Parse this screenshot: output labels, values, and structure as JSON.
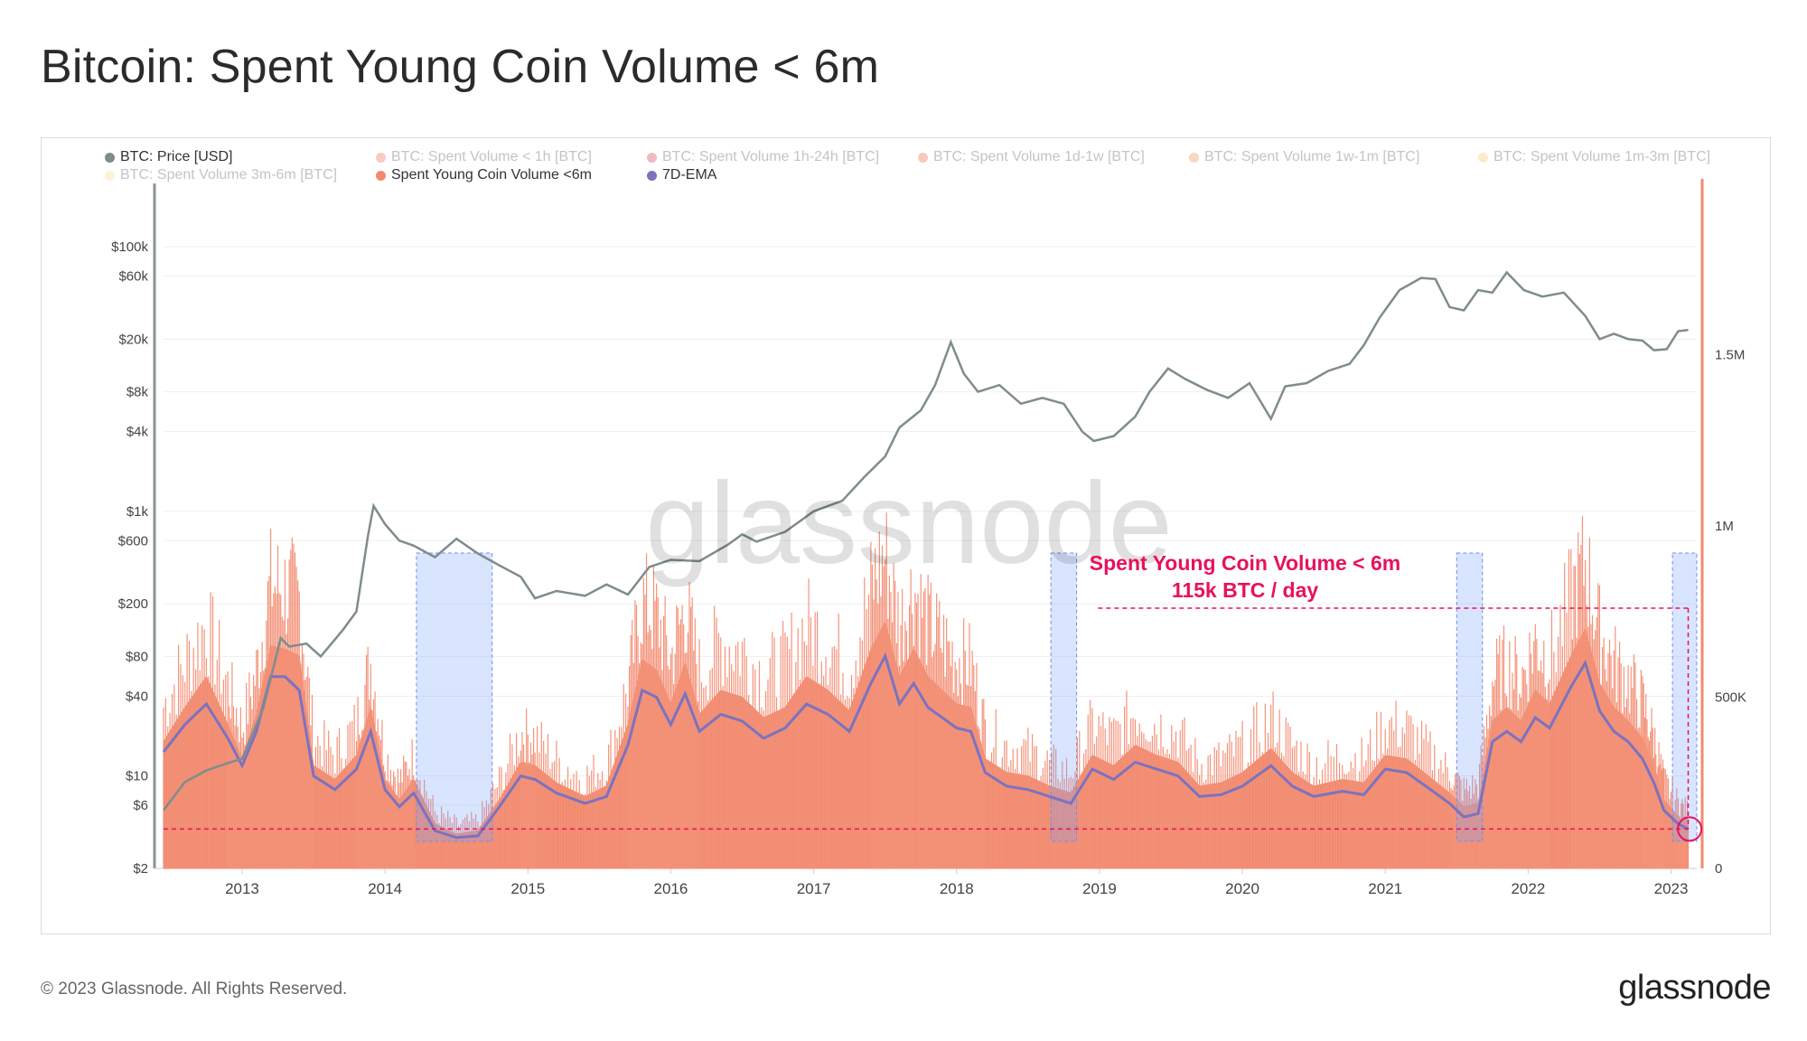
{
  "title": "Bitcoin: Spent Young Coin Volume < 6m",
  "footer": "© 2023 Glassnode. All Rights Reserved.",
  "brand": "glassnode",
  "watermark": "glassnode",
  "legend": [
    {
      "label": "BTC: Price [USD]",
      "color": "#7f8c8d",
      "active": true
    },
    {
      "label": "BTC: Spent Volume < 1h [BTC]",
      "color": "#f08f7a",
      "active": false
    },
    {
      "label": "BTC: Spent Volume 1h-24h [BTC]",
      "color": "#e0647b",
      "active": false
    },
    {
      "label": "BTC: Spent Volume 1d-1w [BTC]",
      "color": "#f4876a",
      "active": false
    },
    {
      "label": "BTC: Spent Volume 1w-1m [BTC]",
      "color": "#f7a77a",
      "active": false
    },
    {
      "label": "BTC: Spent Volume 1m-3m [BTC]",
      "color": "#fbd08a",
      "active": false
    },
    {
      "label": "BTC: Spent Volume 3m-6m [BTC]",
      "color": "#fbe3a5",
      "active": false
    },
    {
      "label": "Spent Young Coin Volume <6m",
      "color": "#f08a6e",
      "active": true
    },
    {
      "label": "7D-EMA",
      "color": "#7b72c0",
      "active": true
    }
  ],
  "annotation": {
    "line1": "Spent Young Coin Volume < 6m",
    "line2": "115k BTC / day",
    "color": "#e8115e"
  },
  "chart_data": {
    "type": "area",
    "x_ticks": [
      "2013",
      "2014",
      "2015",
      "2016",
      "2017",
      "2018",
      "2019",
      "2020",
      "2021",
      "2022",
      "2023"
    ],
    "y_left_ticks": [
      "$100k",
      "$60k",
      "$20k",
      "$8k",
      "$4k",
      "$1k",
      "$600",
      "$200",
      "$80",
      "$40",
      "$10",
      "$6",
      "$2"
    ],
    "y_left_values": [
      100000,
      60000,
      20000,
      8000,
      4000,
      1000,
      600,
      200,
      80,
      40,
      10,
      6,
      2
    ],
    "y_left_scale": "log",
    "y_right_ticks": [
      "1.5M",
      "1M",
      "500K",
      "0"
    ],
    "y_right_values": [
      1500000,
      1000000,
      500000,
      0
    ],
    "y_right_ylim": [
      0,
      2000000
    ],
    "x_range": [
      2012.45,
      2023.18
    ],
    "series": [
      {
        "name": "BTC: Price [USD]",
        "axis": "left",
        "points": [
          [
            2012.45,
            5.5
          ],
          [
            2012.6,
            9
          ],
          [
            2012.75,
            11
          ],
          [
            2012.9,
            12.5
          ],
          [
            2013.0,
            13.5
          ],
          [
            2013.15,
            33
          ],
          [
            2013.27,
            110
          ],
          [
            2013.33,
            95
          ],
          [
            2013.45,
            100
          ],
          [
            2013.55,
            80
          ],
          [
            2013.7,
            125
          ],
          [
            2013.8,
            175
          ],
          [
            2013.88,
            650
          ],
          [
            2013.92,
            1100
          ],
          [
            2014.0,
            800
          ],
          [
            2014.1,
            600
          ],
          [
            2014.2,
            550
          ],
          [
            2014.35,
            450
          ],
          [
            2014.5,
            620
          ],
          [
            2014.65,
            480
          ],
          [
            2014.8,
            390
          ],
          [
            2014.95,
            320
          ],
          [
            2015.05,
            220
          ],
          [
            2015.2,
            250
          ],
          [
            2015.4,
            230
          ],
          [
            2015.55,
            280
          ],
          [
            2015.7,
            235
          ],
          [
            2015.85,
            380
          ],
          [
            2016.0,
            430
          ],
          [
            2016.2,
            420
          ],
          [
            2016.4,
            560
          ],
          [
            2016.5,
            670
          ],
          [
            2016.6,
            590
          ],
          [
            2016.8,
            700
          ],
          [
            2017.0,
            1000
          ],
          [
            2017.2,
            1200
          ],
          [
            2017.35,
            1800
          ],
          [
            2017.5,
            2600
          ],
          [
            2017.6,
            4300
          ],
          [
            2017.75,
            5800
          ],
          [
            2017.85,
            9000
          ],
          [
            2017.96,
            19000
          ],
          [
            2018.05,
            11000
          ],
          [
            2018.15,
            8000
          ],
          [
            2018.3,
            9000
          ],
          [
            2018.45,
            6500
          ],
          [
            2018.6,
            7200
          ],
          [
            2018.75,
            6500
          ],
          [
            2018.88,
            4000
          ],
          [
            2018.96,
            3400
          ],
          [
            2019.1,
            3700
          ],
          [
            2019.25,
            5200
          ],
          [
            2019.35,
            8000
          ],
          [
            2019.48,
            12000
          ],
          [
            2019.6,
            10000
          ],
          [
            2019.75,
            8300
          ],
          [
            2019.9,
            7200
          ],
          [
            2020.05,
            9300
          ],
          [
            2020.2,
            5000
          ],
          [
            2020.3,
            8800
          ],
          [
            2020.45,
            9300
          ],
          [
            2020.6,
            11500
          ],
          [
            2020.75,
            13000
          ],
          [
            2020.85,
            18000
          ],
          [
            2020.96,
            29000
          ],
          [
            2021.1,
            47000
          ],
          [
            2021.25,
            58000
          ],
          [
            2021.35,
            57000
          ],
          [
            2021.45,
            35000
          ],
          [
            2021.55,
            33000
          ],
          [
            2021.65,
            47000
          ],
          [
            2021.75,
            45000
          ],
          [
            2021.85,
            64000
          ],
          [
            2021.97,
            47000
          ],
          [
            2022.1,
            42000
          ],
          [
            2022.25,
            45000
          ],
          [
            2022.4,
            30000
          ],
          [
            2022.5,
            20000
          ],
          [
            2022.6,
            22000
          ],
          [
            2022.7,
            20000
          ],
          [
            2022.8,
            19500
          ],
          [
            2022.88,
            16500
          ],
          [
            2022.97,
            16800
          ],
          [
            2023.05,
            23000
          ],
          [
            2023.12,
            23500
          ]
        ]
      },
      {
        "name": "Spent Young Coin Volume <6m",
        "axis": "right",
        "points": [
          [
            2012.45,
            370000
          ],
          [
            2012.6,
            470000
          ],
          [
            2012.75,
            560000
          ],
          [
            2012.9,
            420000
          ],
          [
            2013.0,
            320000
          ],
          [
            2013.1,
            450000
          ],
          [
            2013.2,
            650000
          ],
          [
            2013.3,
            640000
          ],
          [
            2013.4,
            620000
          ],
          [
            2013.5,
            300000
          ],
          [
            2013.65,
            260000
          ],
          [
            2013.8,
            330000
          ],
          [
            2013.9,
            470000
          ],
          [
            2014.0,
            260000
          ],
          [
            2014.1,
            200000
          ],
          [
            2014.2,
            260000
          ],
          [
            2014.35,
            130000
          ],
          [
            2014.5,
            100000
          ],
          [
            2014.65,
            110000
          ],
          [
            2014.8,
            200000
          ],
          [
            2014.95,
            310000
          ],
          [
            2015.05,
            300000
          ],
          [
            2015.2,
            250000
          ],
          [
            2015.4,
            210000
          ],
          [
            2015.55,
            240000
          ],
          [
            2015.7,
            420000
          ],
          [
            2015.8,
            610000
          ],
          [
            2015.9,
            580000
          ],
          [
            2016.0,
            480000
          ],
          [
            2016.1,
            600000
          ],
          [
            2016.2,
            450000
          ],
          [
            2016.35,
            520000
          ],
          [
            2016.5,
            500000
          ],
          [
            2016.65,
            440000
          ],
          [
            2016.8,
            470000
          ],
          [
            2016.95,
            560000
          ],
          [
            2017.1,
            520000
          ],
          [
            2017.25,
            460000
          ],
          [
            2017.4,
            640000
          ],
          [
            2017.5,
            720000
          ],
          [
            2017.6,
            560000
          ],
          [
            2017.7,
            640000
          ],
          [
            2017.8,
            560000
          ],
          [
            2017.9,
            520000
          ],
          [
            2018.0,
            480000
          ],
          [
            2018.1,
            470000
          ],
          [
            2018.2,
            320000
          ],
          [
            2018.35,
            280000
          ],
          [
            2018.5,
            270000
          ],
          [
            2018.65,
            240000
          ],
          [
            2018.8,
            220000
          ],
          [
            2018.95,
            330000
          ],
          [
            2019.1,
            300000
          ],
          [
            2019.25,
            360000
          ],
          [
            2019.4,
            330000
          ],
          [
            2019.55,
            310000
          ],
          [
            2019.7,
            240000
          ],
          [
            2019.85,
            250000
          ],
          [
            2020.0,
            280000
          ],
          [
            2020.2,
            350000
          ],
          [
            2020.35,
            280000
          ],
          [
            2020.5,
            240000
          ],
          [
            2020.7,
            260000
          ],
          [
            2020.85,
            250000
          ],
          [
            2021.0,
            330000
          ],
          [
            2021.15,
            320000
          ],
          [
            2021.3,
            270000
          ],
          [
            2021.45,
            220000
          ],
          [
            2021.55,
            180000
          ],
          [
            2021.65,
            190000
          ],
          [
            2021.75,
            430000
          ],
          [
            2021.85,
            470000
          ],
          [
            2021.95,
            430000
          ],
          [
            2022.05,
            520000
          ],
          [
            2022.15,
            480000
          ],
          [
            2022.3,
            620000
          ],
          [
            2022.4,
            700000
          ],
          [
            2022.5,
            540000
          ],
          [
            2022.6,
            470000
          ],
          [
            2022.7,
            430000
          ],
          [
            2022.8,
            380000
          ],
          [
            2022.88,
            300000
          ],
          [
            2022.95,
            200000
          ],
          [
            2023.05,
            150000
          ],
          [
            2023.12,
            130000
          ]
        ]
      },
      {
        "name": "7D-EMA",
        "axis": "right",
        "points": [
          [
            2012.45,
            340000
          ],
          [
            2012.6,
            420000
          ],
          [
            2012.75,
            480000
          ],
          [
            2012.9,
            380000
          ],
          [
            2013.0,
            300000
          ],
          [
            2013.1,
            400000
          ],
          [
            2013.2,
            560000
          ],
          [
            2013.3,
            560000
          ],
          [
            2013.4,
            520000
          ],
          [
            2013.5,
            270000
          ],
          [
            2013.65,
            230000
          ],
          [
            2013.8,
            290000
          ],
          [
            2013.9,
            400000
          ],
          [
            2014.0,
            230000
          ],
          [
            2014.1,
            180000
          ],
          [
            2014.2,
            220000
          ],
          [
            2014.35,
            110000
          ],
          [
            2014.5,
            90000
          ],
          [
            2014.65,
            95000
          ],
          [
            2014.8,
            180000
          ],
          [
            2014.95,
            270000
          ],
          [
            2015.05,
            260000
          ],
          [
            2015.2,
            220000
          ],
          [
            2015.4,
            190000
          ],
          [
            2015.55,
            210000
          ],
          [
            2015.7,
            360000
          ],
          [
            2015.8,
            520000
          ],
          [
            2015.9,
            500000
          ],
          [
            2016.0,
            420000
          ],
          [
            2016.1,
            510000
          ],
          [
            2016.2,
            400000
          ],
          [
            2016.35,
            450000
          ],
          [
            2016.5,
            430000
          ],
          [
            2016.65,
            380000
          ],
          [
            2016.8,
            410000
          ],
          [
            2016.95,
            480000
          ],
          [
            2017.1,
            450000
          ],
          [
            2017.25,
            400000
          ],
          [
            2017.4,
            540000
          ],
          [
            2017.5,
            620000
          ],
          [
            2017.6,
            480000
          ],
          [
            2017.7,
            540000
          ],
          [
            2017.8,
            470000
          ],
          [
            2017.9,
            440000
          ],
          [
            2018.0,
            410000
          ],
          [
            2018.1,
            400000
          ],
          [
            2018.2,
            280000
          ],
          [
            2018.35,
            240000
          ],
          [
            2018.5,
            230000
          ],
          [
            2018.65,
            210000
          ],
          [
            2018.8,
            190000
          ],
          [
            2018.95,
            290000
          ],
          [
            2019.1,
            260000
          ],
          [
            2019.25,
            310000
          ],
          [
            2019.4,
            290000
          ],
          [
            2019.55,
            270000
          ],
          [
            2019.7,
            210000
          ],
          [
            2019.85,
            215000
          ],
          [
            2020.0,
            240000
          ],
          [
            2020.2,
            300000
          ],
          [
            2020.35,
            240000
          ],
          [
            2020.5,
            210000
          ],
          [
            2020.7,
            225000
          ],
          [
            2020.85,
            215000
          ],
          [
            2021.0,
            290000
          ],
          [
            2021.15,
            280000
          ],
          [
            2021.3,
            235000
          ],
          [
            2021.45,
            190000
          ],
          [
            2021.55,
            150000
          ],
          [
            2021.65,
            160000
          ],
          [
            2021.75,
            370000
          ],
          [
            2021.85,
            400000
          ],
          [
            2021.95,
            370000
          ],
          [
            2022.05,
            440000
          ],
          [
            2022.15,
            410000
          ],
          [
            2022.3,
            530000
          ],
          [
            2022.4,
            600000
          ],
          [
            2022.5,
            460000
          ],
          [
            2022.6,
            400000
          ],
          [
            2022.7,
            370000
          ],
          [
            2022.8,
            320000
          ],
          [
            2022.88,
            250000
          ],
          [
            2022.95,
            170000
          ],
          [
            2023.05,
            130000
          ],
          [
            2023.12,
            115000
          ]
        ]
      }
    ],
    "highlight_ranges": [
      [
        2014.22,
        2014.75
      ],
      [
        2018.66,
        2018.84
      ],
      [
        2021.5,
        2021.68
      ],
      [
        2023.01,
        2023.18
      ]
    ],
    "threshold_lines": [
      {
        "value": 115000,
        "axis": "right",
        "style": "dashed",
        "color": "#e8115e"
      },
      {
        "value": 760000,
        "axis": "right",
        "style": "dashed",
        "color": "#e8115e",
        "x_from": 2018.99,
        "x_to": 2023.12
      }
    ],
    "grid": true,
    "legend_position": "top-left"
  }
}
